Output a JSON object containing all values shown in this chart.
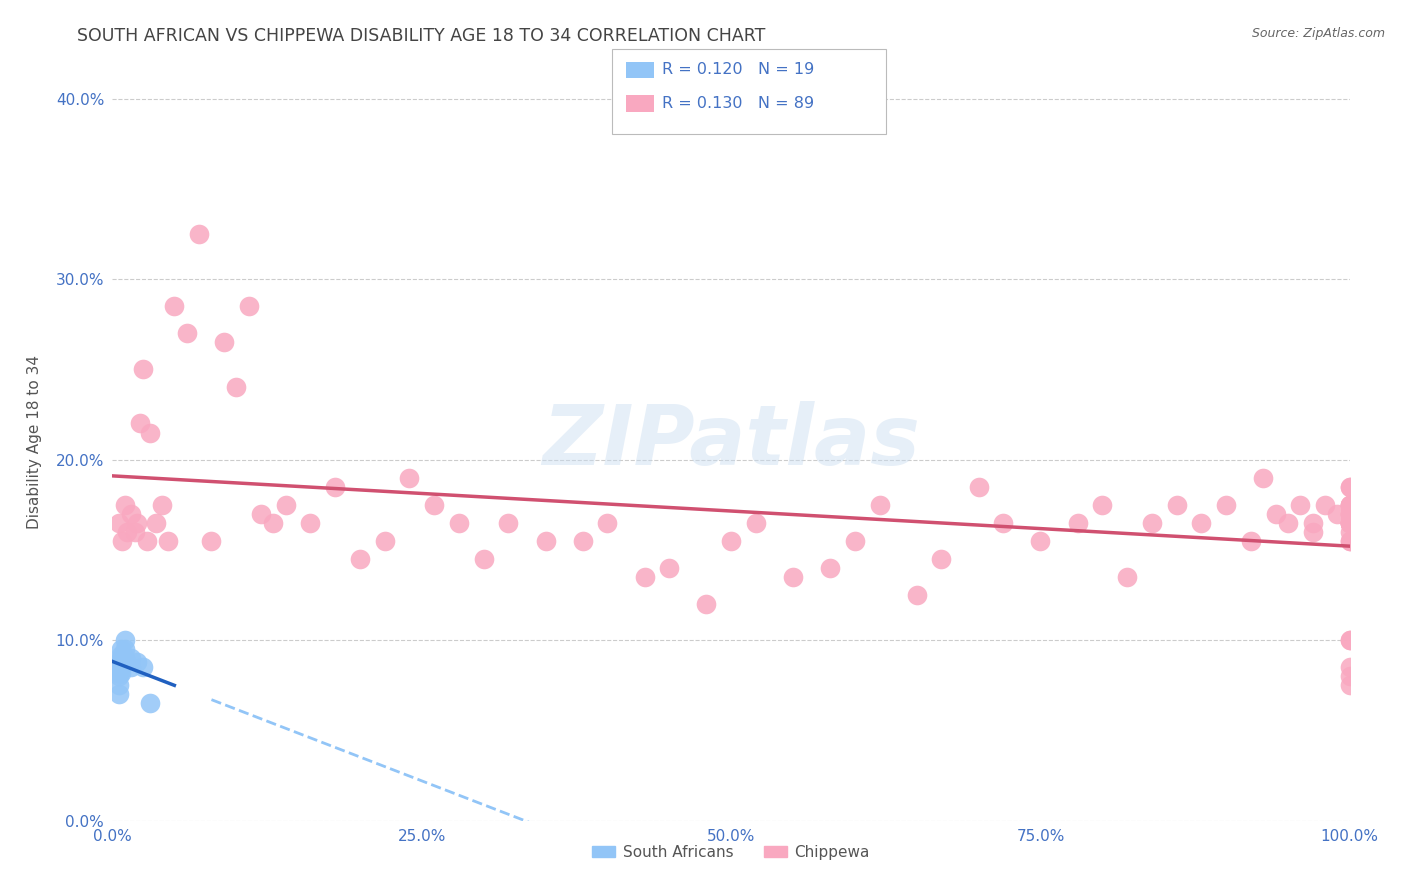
{
  "title": "SOUTH AFRICAN VS CHIPPEWA DISABILITY AGE 18 TO 34 CORRELATION CHART",
  "source": "Source: ZipAtlas.com",
  "ylabel": "Disability Age 18 to 34",
  "xlim": [
    0.0,
    1.0
  ],
  "ylim": [
    0.0,
    0.42
  ],
  "xticks": [
    0.0,
    0.25,
    0.5,
    0.75,
    1.0
  ],
  "yticks": [
    0.0,
    0.1,
    0.2,
    0.3,
    0.4
  ],
  "sa_color": "#92C5F7",
  "ch_color": "#F9A8C0",
  "sa_line_color": "#2060C0",
  "ch_line_color": "#D05070",
  "dashed_color": "#92C5F7",
  "title_color": "#444444",
  "source_color": "#666666",
  "label_color": "#4472C4",
  "grid_color": "#CCCCCC",
  "background_color": "#FFFFFF",
  "south_african_x": [
    0.005,
    0.005,
    0.005,
    0.005,
    0.005,
    0.007,
    0.007,
    0.007,
    0.007,
    0.007,
    0.007,
    0.01,
    0.01,
    0.01,
    0.015,
    0.015,
    0.02,
    0.025,
    0.03
  ],
  "south_african_y": [
    0.07,
    0.075,
    0.08,
    0.082,
    0.085,
    0.082,
    0.085,
    0.088,
    0.09,
    0.092,
    0.095,
    0.09,
    0.095,
    0.1,
    0.085,
    0.09,
    0.088,
    0.085,
    0.065
  ],
  "chippewa_x": [
    0.005,
    0.008,
    0.01,
    0.012,
    0.015,
    0.018,
    0.02,
    0.022,
    0.025,
    0.028,
    0.03,
    0.035,
    0.04,
    0.045,
    0.05,
    0.06,
    0.07,
    0.08,
    0.09,
    0.1,
    0.11,
    0.12,
    0.13,
    0.14,
    0.16,
    0.18,
    0.2,
    0.22,
    0.24,
    0.26,
    0.28,
    0.3,
    0.32,
    0.35,
    0.38,
    0.4,
    0.43,
    0.45,
    0.48,
    0.5,
    0.52,
    0.55,
    0.58,
    0.6,
    0.62,
    0.65,
    0.67,
    0.7,
    0.72,
    0.75,
    0.78,
    0.8,
    0.82,
    0.84,
    0.86,
    0.88,
    0.9,
    0.92,
    0.93,
    0.94,
    0.95,
    0.96,
    0.97,
    0.97,
    0.98,
    0.99,
    1.0,
    1.0,
    1.0,
    1.0,
    1.0,
    1.0,
    1.0,
    1.0,
    1.0,
    1.0,
    1.0,
    1.0,
    1.0,
    1.0,
    1.0,
    1.0,
    1.0,
    1.0,
    1.0,
    1.0,
    1.0,
    1.0,
    1.0
  ],
  "chippewa_y": [
    0.165,
    0.155,
    0.175,
    0.16,
    0.17,
    0.16,
    0.165,
    0.22,
    0.25,
    0.155,
    0.215,
    0.165,
    0.175,
    0.155,
    0.285,
    0.27,
    0.325,
    0.155,
    0.265,
    0.24,
    0.285,
    0.17,
    0.165,
    0.175,
    0.165,
    0.185,
    0.145,
    0.155,
    0.19,
    0.175,
    0.165,
    0.145,
    0.165,
    0.155,
    0.155,
    0.165,
    0.135,
    0.14,
    0.12,
    0.155,
    0.165,
    0.135,
    0.14,
    0.155,
    0.175,
    0.125,
    0.145,
    0.185,
    0.165,
    0.155,
    0.165,
    0.175,
    0.135,
    0.165,
    0.175,
    0.165,
    0.175,
    0.155,
    0.19,
    0.17,
    0.165,
    0.175,
    0.16,
    0.165,
    0.175,
    0.17,
    0.175,
    0.155,
    0.165,
    0.17,
    0.075,
    0.08,
    0.1,
    0.165,
    0.175,
    0.1,
    0.085,
    0.155,
    0.165,
    0.17,
    0.165,
    0.175,
    0.185,
    0.16,
    0.165,
    0.175,
    0.185,
    0.165,
    0.17
  ]
}
